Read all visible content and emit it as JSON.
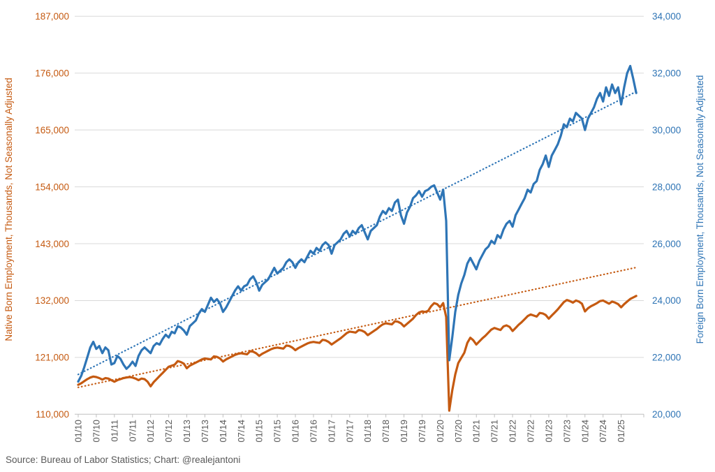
{
  "chart_data": {
    "type": "line",
    "title": "",
    "legend": "none",
    "grid": "horizontal",
    "x_start": "01/10",
    "x_end": "01/25",
    "tick_every_months": 6,
    "x_tick_labels": [
      "01/10",
      "07/10",
      "01/11",
      "07/11",
      "01/12",
      "07/12",
      "01/13",
      "07/13",
      "01/14",
      "07/14",
      "01/15",
      "07/15",
      "01/16",
      "07/16",
      "01/17",
      "07/17",
      "01/18",
      "07/18",
      "01/19",
      "07/19",
      "01/20",
      "07/20",
      "01/21",
      "07/21",
      "01/22",
      "07/22",
      "01/23",
      "07/23",
      "01/24",
      "07/24",
      "01/25"
    ],
    "left_axis": {
      "title": "Native Born Employment, Thousands, Not Seasonally Adjusted",
      "color": "#C55A11",
      "min": 110000,
      "max": 187000,
      "step": 11000,
      "tick_labels": [
        "110,000",
        "121,000",
        "132,000",
        "143,000",
        "154,000",
        "165,000",
        "176,000",
        "187,000"
      ]
    },
    "right_axis": {
      "title": "Foreign Born Employment, Thousands, Not Seasonally Adjusted",
      "color": "#2E74B5",
      "min": 20000,
      "max": 34000,
      "step": 2000,
      "tick_labels": [
        "20,000",
        "22,000",
        "24,000",
        "26,000",
        "28,000",
        "30,000",
        "32,000",
        "34,000"
      ]
    },
    "series": [
      {
        "name": "Native Born Employment",
        "axis": "left",
        "color": "#C55A11",
        "style": "solid",
        "values": [
          115700,
          116000,
          116400,
          116800,
          117100,
          117300,
          117200,
          117000,
          116700,
          117000,
          116900,
          116600,
          116300,
          116600,
          116800,
          117000,
          117100,
          117200,
          117100,
          116900,
          116600,
          116900,
          116800,
          116300,
          115400,
          116200,
          116800,
          117400,
          118000,
          118600,
          119200,
          119400,
          119600,
          120300,
          120100,
          119800,
          118900,
          119400,
          119700,
          120000,
          120300,
          120600,
          120800,
          120700,
          120600,
          121200,
          121100,
          120800,
          120200,
          120600,
          120900,
          121200,
          121500,
          121700,
          121800,
          121700,
          121600,
          122200,
          122100,
          121800,
          121300,
          121700,
          122000,
          122300,
          122600,
          122800,
          122900,
          122800,
          122700,
          123300,
          123200,
          122900,
          122400,
          122800,
          123100,
          123400,
          123700,
          123900,
          124000,
          123900,
          123800,
          124400,
          124300,
          124000,
          123500,
          123900,
          124300,
          124700,
          125200,
          125700,
          126000,
          125900,
          125800,
          126300,
          126200,
          125900,
          125300,
          125700,
          126100,
          126500,
          127000,
          127400,
          127600,
          127500,
          127400,
          128000,
          127900,
          127600,
          127000,
          127500,
          128000,
          128500,
          129200,
          129700,
          129900,
          129800,
          130000,
          130900,
          131500,
          131300,
          130700,
          131500,
          128800,
          110700,
          114600,
          117700,
          119900,
          120900,
          121900,
          123800,
          124800,
          124300,
          123500,
          124100,
          124700,
          125200,
          125800,
          126400,
          126700,
          126500,
          126300,
          127000,
          127200,
          126900,
          126100,
          126700,
          127300,
          127800,
          128400,
          129000,
          129300,
          129100,
          128900,
          129600,
          129500,
          129200,
          128500,
          129100,
          129700,
          130300,
          131000,
          131700,
          132100,
          131900,
          131600,
          132000,
          131800,
          131400,
          129900,
          130500,
          130900,
          131200,
          131500,
          131900,
          132000,
          131700,
          131400,
          131800,
          131600,
          131300,
          130700,
          131300,
          131800,
          132300,
          132600,
          132900
        ]
      },
      {
        "name": "Foreign Born Employment",
        "axis": "right",
        "color": "#2E75B6",
        "style": "solid",
        "values": [
          21150,
          21350,
          21650,
          22000,
          22350,
          22550,
          22300,
          22400,
          22150,
          22350,
          22250,
          21750,
          21800,
          22050,
          21950,
          21750,
          21600,
          21700,
          21850,
          21700,
          22050,
          22250,
          22350,
          22250,
          22150,
          22400,
          22500,
          22450,
          22650,
          22800,
          22700,
          22900,
          22850,
          23100,
          23050,
          22950,
          22800,
          23100,
          23200,
          23300,
          23550,
          23700,
          23600,
          23850,
          24100,
          23950,
          24050,
          23900,
          23600,
          23750,
          23950,
          24150,
          24350,
          24500,
          24350,
          24500,
          24550,
          24750,
          24850,
          24650,
          24350,
          24550,
          24650,
          24750,
          24950,
          25150,
          24950,
          25050,
          25150,
          25350,
          25450,
          25350,
          25150,
          25350,
          25450,
          25350,
          25550,
          25750,
          25650,
          25850,
          25750,
          25950,
          26050,
          25950,
          25650,
          25950,
          26050,
          26150,
          26350,
          26450,
          26250,
          26450,
          26350,
          26550,
          26650,
          26400,
          26150,
          26450,
          26550,
          26650,
          26950,
          27150,
          27050,
          27250,
          27150,
          27450,
          27550,
          27000,
          26700,
          27100,
          27300,
          27600,
          27700,
          27850,
          27650,
          27850,
          27900,
          28000,
          28050,
          27800,
          27550,
          27900,
          26800,
          21900,
          22700,
          23600,
          24200,
          24600,
          24900,
          25300,
          25500,
          25300,
          25100,
          25400,
          25600,
          25800,
          25900,
          26100,
          26000,
          26300,
          26200,
          26500,
          26700,
          26800,
          26600,
          27000,
          27200,
          27400,
          27600,
          27900,
          27800,
          28100,
          28200,
          28600,
          28800,
          29100,
          28700,
          29100,
          29300,
          29500,
          29800,
          30200,
          30100,
          30400,
          30300,
          30600,
          30500,
          30400,
          30000,
          30400,
          30600,
          30800,
          31100,
          31300,
          31000,
          31500,
          31200,
          31600,
          31300,
          31500,
          30900,
          31500,
          32000,
          32250,
          31800,
          31300
        ]
      },
      {
        "name": "Native Born Linear Trend",
        "axis": "left",
        "color": "#C55A11",
        "style": "dotted",
        "trend_start": 115200,
        "trend_end": 138400
      },
      {
        "name": "Foreign Born Linear Trend",
        "axis": "right",
        "color": "#2E75B6",
        "style": "dotted",
        "trend_start": 21400,
        "trend_end": 31350
      }
    ]
  },
  "footer": {
    "source_note": "Source: Bureau of Labor Statistics; Chart: @realejantoni"
  },
  "colors": {
    "gridline": "#D9D9D9",
    "axis_line": "#BFBFBF",
    "x_label": "#595959"
  }
}
